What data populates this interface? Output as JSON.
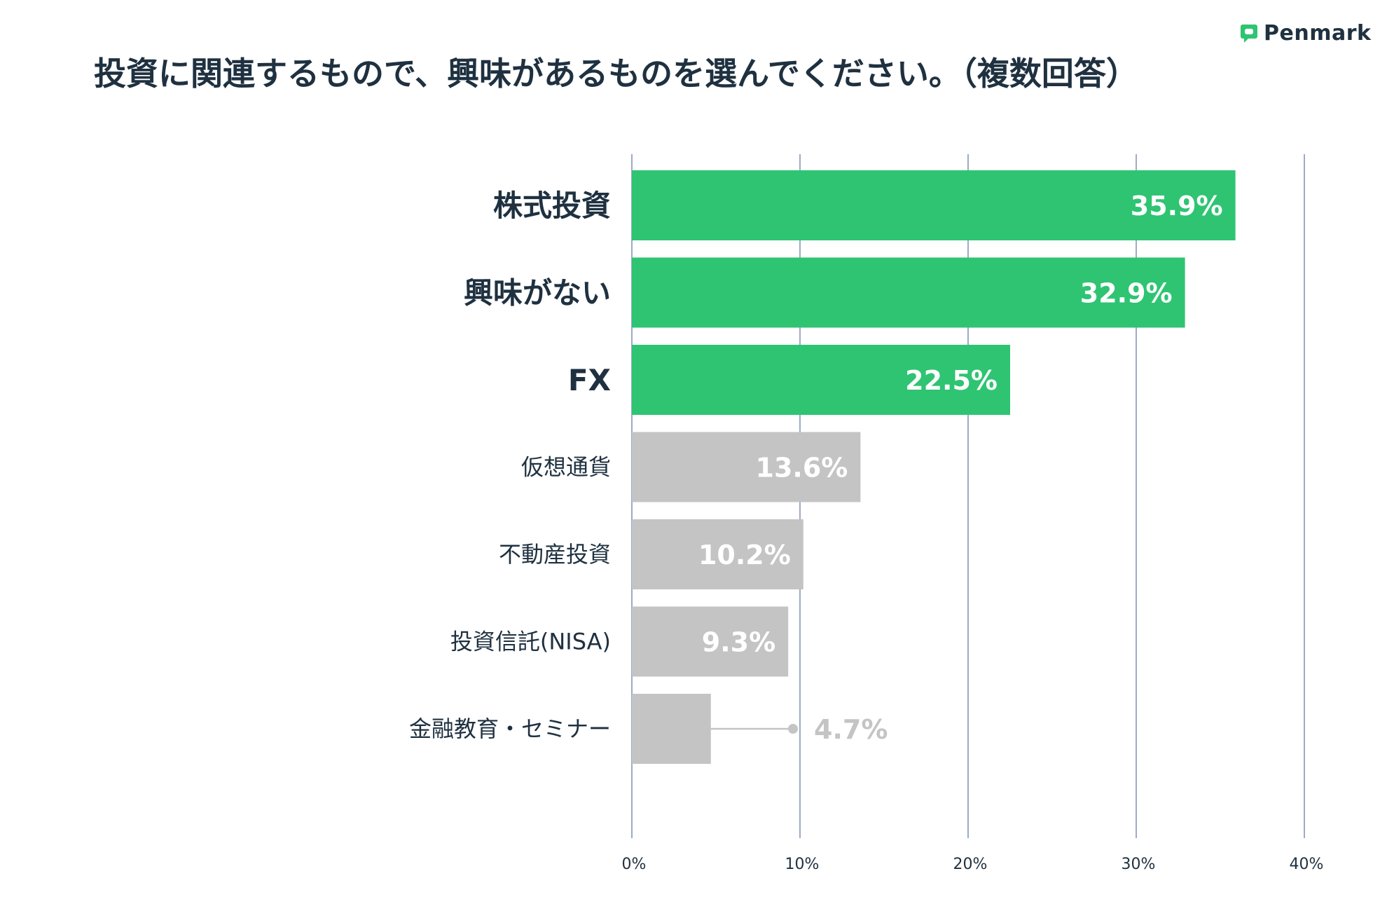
{
  "brand": {
    "name": "Penmark",
    "icon": "speech-bubble-icon",
    "color": "#2ec472"
  },
  "chart_data": {
    "type": "bar",
    "orientation": "horizontal",
    "title": "投資に関連するもので、興味があるものを選んでください。（複数回答）",
    "categories": [
      "株式投資",
      "興味がない",
      "FX",
      "仮想通貨",
      "不動産投資",
      "投資信託(NISA)",
      "金融教育・セミナー"
    ],
    "values": [
      35.9,
      32.9,
      22.5,
      13.6,
      10.2,
      9.3,
      4.7
    ],
    "value_labels": [
      "35.9%",
      "32.9%",
      "22.5%",
      "13.6%",
      "10.2%",
      "9.3%",
      "4.7%"
    ],
    "highlighted": [
      true,
      true,
      true,
      false,
      false,
      false,
      false
    ],
    "xlim": [
      0,
      40
    ],
    "xticks": [
      0,
      10,
      20,
      30,
      40
    ],
    "xtick_labels": [
      "0%",
      "10%",
      "20%",
      "30%",
      "40%"
    ],
    "grid": true,
    "colors": {
      "highlight": "#2ec472",
      "normal": "#c4c4c4",
      "grid": "#7d8fb3",
      "label_on_bar": "#ffffff",
      "label_outside": "#c4c4c4"
    }
  }
}
